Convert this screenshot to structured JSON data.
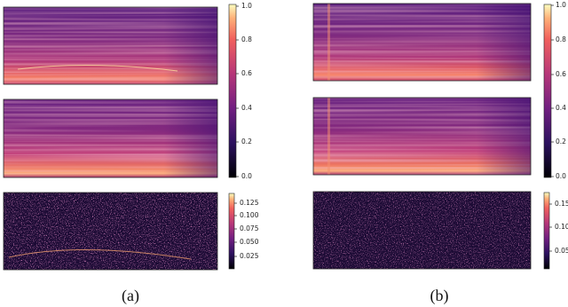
{
  "panels": [
    {
      "caption": "(a)",
      "colorbars": [
        {
          "ticks": [
            "1.0",
            "0.8",
            "0.6",
            "0.4",
            "0.2",
            "0.0"
          ]
        },
        {
          "ticks": [
            "0.125",
            "0.100",
            "0.075",
            "0.050",
            "0.025"
          ]
        }
      ]
    },
    {
      "caption": "(b)",
      "colorbars": [
        {
          "ticks": [
            "1.0",
            "0.8",
            "0.6",
            "0.4",
            "0.2",
            "0.0"
          ]
        },
        {
          "ticks": [
            "0.15",
            "0.10",
            "0.05"
          ]
        }
      ]
    }
  ]
}
